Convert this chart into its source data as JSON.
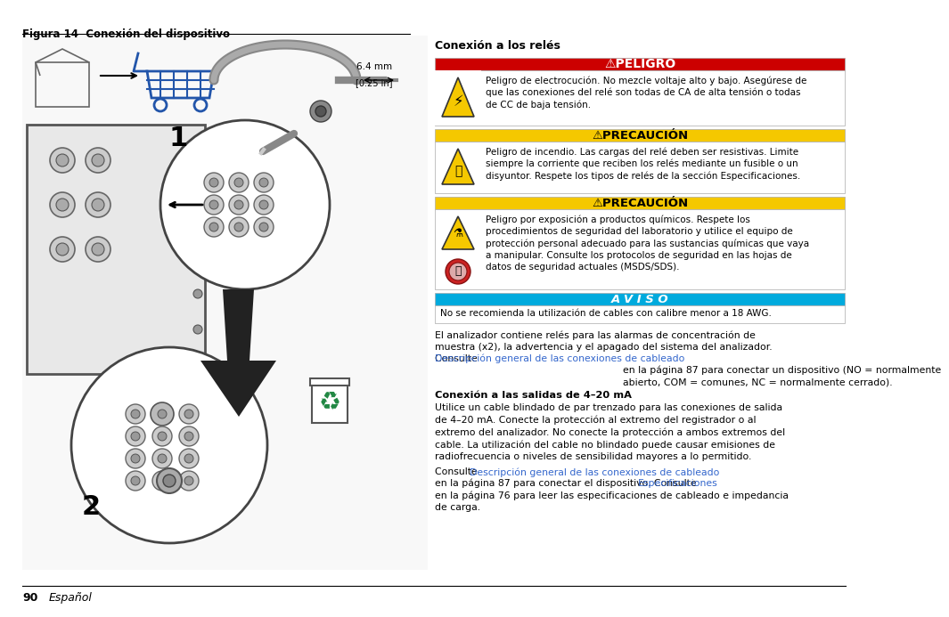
{
  "page_bg": "#ffffff",
  "fig_title": "Figura 14  Conexión del dispositivo",
  "right_title": "Conexión a los relés",
  "danger_bg": "#cc0000",
  "danger_text_color": "#ffffff",
  "danger_title": "⚠PELIGRO",
  "danger_body": "Peligro de electrocución. No mezcle voltaje alto y bajo. Asegúrese de\nque las conexiones del relé son todas de CA de alta tensión o todas\nde CC de baja tensión.",
  "precaucion1_bg": "#f5c800",
  "precaucion1_text_color": "#000000",
  "precaucion1_title": "⚠PRECAUCIÓN",
  "precaucion1_body": "Peligro de incendio. Las cargas del relé deben ser resistivas. Limite\nsiempre la corriente que reciben los relés mediante un fusible o un\ndisyuntor. Respete los tipos de relés de la sección Especificaciones.",
  "precaucion2_bg": "#f5c800",
  "precaucion2_text_color": "#000000",
  "precaucion2_title": "⚠PRECAUCIÓN",
  "precaucion2_body": "Peligro por exposición a productos químicos. Respete los\nprocedimientos de seguridad del laboratorio y utilice el equipo de\nprotección personal adecuado para las sustancias químicas que vaya\na manipular. Consulte los protocolos de seguridad en las hojas de\ndatos de seguridad actuales (MSDS/SDS).",
  "aviso_bg": "#00aadd",
  "aviso_text_color": "#ffffff",
  "aviso_title": "A V I S O",
  "aviso_body": "No se recomienda la utilización de cables con calibre menor a 18 AWG.",
  "para1": "El analizador contiene relés para las alarmas de concentración de\nmuestra (x2), la advertencia y el apagado del sistema del analizador.\nConsulte ",
  "para1_link": "Descripción general de las conexiones de cableado",
  "para1_cont": "\nen la página 87 para conectar un dispositivo (NO = normalmente\nabierto, COM = comunes, NC = normalmente cerrado).",
  "section2_title": "Conexión a las salidas de 4–20 mA",
  "section2_body": "Utilice un cable blindado de par trenzado para las conexiones de salida\nde 4–20 mA. Conecte la protección al extremo del registrador o al\nextremo del analizador. No conecte la protección a ambos extremos del\ncable. La utilización del cable no blindado puede causar emisiones de\nradiofrecuencia o niveles de sensibilidad mayores a lo permitido.",
  "para3": "Consulte ",
  "para3_link": "Descripción general de las conexiones de cableado",
  "para3_cont": "\nen la página 87 para conectar el dispositivo. Consulte ",
  "para3_link2": "Especificaciones",
  "para3_cont2": "\nen la página 76 para leer las especificaciones de cableado e impedancia\nde carga.",
  "link_color": "#3366cc",
  "footer_text": "90",
  "footer_italic": "Español",
  "text_color": "#000000",
  "border_color": "#000000",
  "line_color": "#000000"
}
